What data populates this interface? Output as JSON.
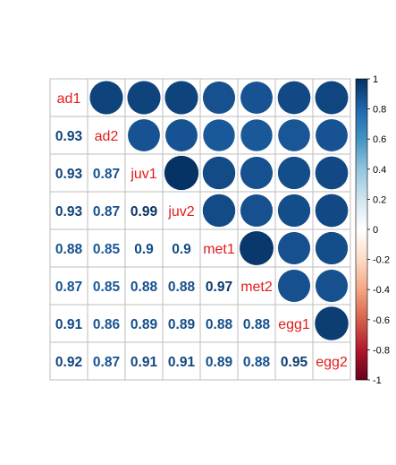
{
  "chart_data": {
    "type": "heatmap",
    "variables": [
      "ad1",
      "ad2",
      "juv1",
      "juv2",
      "met1",
      "met2",
      "egg1",
      "egg2"
    ],
    "correlations": [
      [
        1,
        0.93,
        0.93,
        0.93,
        0.88,
        0.87,
        0.91,
        0.92
      ],
      [
        0.93,
        1,
        0.87,
        0.87,
        0.85,
        0.85,
        0.86,
        0.87
      ],
      [
        0.93,
        0.87,
        1,
        0.99,
        0.9,
        0.88,
        0.89,
        0.91
      ],
      [
        0.93,
        0.87,
        0.99,
        1,
        0.9,
        0.88,
        0.89,
        0.91
      ],
      [
        0.88,
        0.85,
        0.9,
        0.9,
        1,
        0.97,
        0.88,
        0.89
      ],
      [
        0.87,
        0.85,
        0.88,
        0.88,
        0.97,
        1,
        0.88,
        0.88
      ],
      [
        0.91,
        0.86,
        0.89,
        0.89,
        0.88,
        0.88,
        1,
        0.95
      ],
      [
        0.92,
        0.87,
        0.91,
        0.91,
        0.89,
        0.88,
        0.95,
        1
      ]
    ],
    "lower_triangle_labels": [
      [
        "0.93"
      ],
      [
        "0.93",
        "0.87"
      ],
      [
        "0.93",
        "0.87",
        "0.99"
      ],
      [
        "0.88",
        "0.85",
        "0.9",
        "0.9"
      ],
      [
        "0.87",
        "0.85",
        "0.88",
        "0.88",
        "0.97"
      ],
      [
        "0.91",
        "0.86",
        "0.89",
        "0.89",
        "0.88",
        "0.88"
      ],
      [
        "0.92",
        "0.87",
        "0.91",
        "0.91",
        "0.89",
        "0.88",
        "0.95"
      ]
    ],
    "upper_method": "circle",
    "lower_method": "number",
    "colorbar": {
      "range": [
        -1,
        1
      ],
      "ticks": [
        "1",
        "0.8",
        "0.6",
        "0.4",
        "0.2",
        "0",
        "-0.2",
        "-0.4",
        "-0.6",
        "-0.8",
        "-1"
      ],
      "palette": [
        "#67001F",
        "#B2182B",
        "#D6604D",
        "#F4A582",
        "#FDDBC7",
        "#FFFFFF",
        "#D1E5F0",
        "#92C5DE",
        "#4393C3",
        "#2166AC",
        "#053061"
      ]
    },
    "label_color": "#E41A1C",
    "grid": true
  }
}
